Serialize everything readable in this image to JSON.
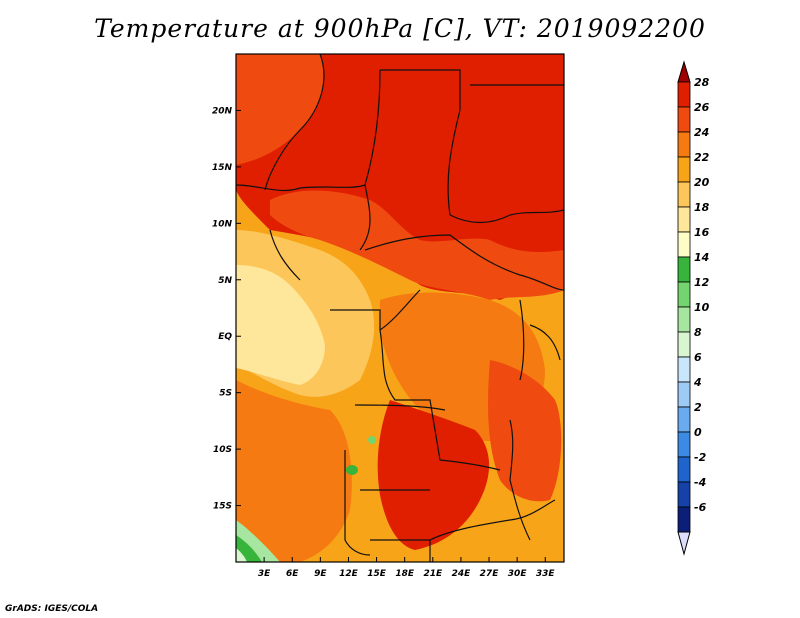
{
  "title": "Temperature at 900hPa [C], VT: 2019092200",
  "footer": "GrADS: IGES/COLA",
  "map": {
    "lon_range": [
      0,
      35
    ],
    "lat_range": [
      -20,
      25
    ],
    "lon_ticks": [
      "3E",
      "6E",
      "9E",
      "12E",
      "15E",
      "18E",
      "21E",
      "24E",
      "27E",
      "30E",
      "33E"
    ],
    "lon_tick_values": [
      3,
      6,
      9,
      12,
      15,
      18,
      21,
      24,
      27,
      30,
      33
    ],
    "lat_ticks": [
      "20N",
      "15N",
      "10N",
      "5N",
      "EQ",
      "5S",
      "10S",
      "15S"
    ],
    "lat_tick_values": [
      20,
      15,
      10,
      5,
      0,
      -5,
      -10,
      -15
    ]
  },
  "colorbar": {
    "labels": [
      "28",
      "26",
      "24",
      "22",
      "20",
      "18",
      "16",
      "14",
      "12",
      "10",
      "8",
      "6",
      "4",
      "2",
      "0",
      "-2",
      "-4",
      "-6"
    ],
    "colors": [
      "#a00000",
      "#e01e00",
      "#ef4a10",
      "#f57a12",
      "#f8a418",
      "#fdc65a",
      "#fee69a",
      "#fefdc8",
      "#37b43b",
      "#74d46f",
      "#a6e6a0",
      "#d8f6d0",
      "#c8e6fc",
      "#9dcbf6",
      "#6aabef",
      "#3b8be4",
      "#1f64cc",
      "#1541a8",
      "#0c1f78",
      "#dcdcfc"
    ]
  }
}
